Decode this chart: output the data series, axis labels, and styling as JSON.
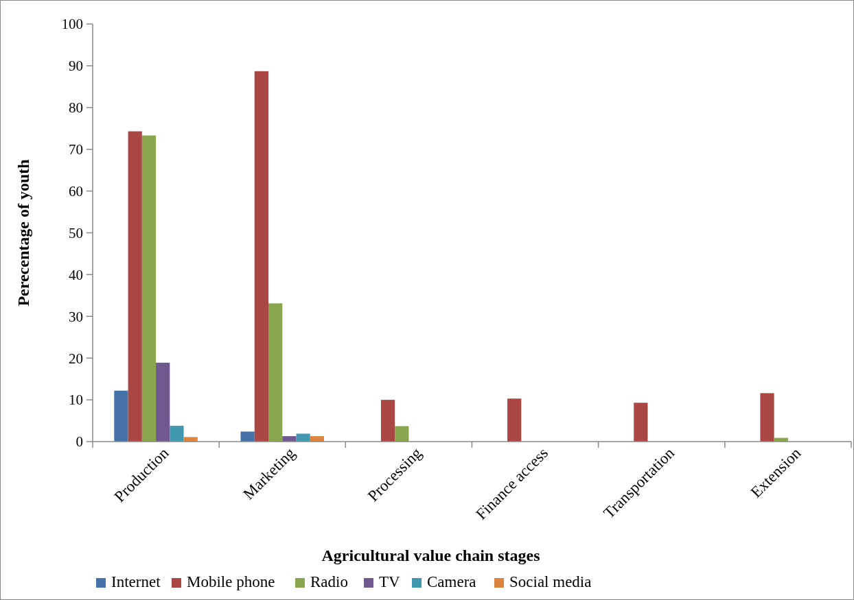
{
  "chart_data": {
    "type": "bar",
    "xlabel": "Agricultural value chain stages",
    "ylabel": "Perecentage of youth",
    "categories": [
      "Production",
      "Marketing",
      "Processing",
      "Finance access",
      "Transportation",
      "Extension"
    ],
    "series": [
      {
        "name": "Internet",
        "color": "#4572a7",
        "values": [
          12.2,
          2.4,
          0,
          0,
          0,
          0
        ]
      },
      {
        "name": "Mobile phone",
        "color": "#aa4643",
        "values": [
          74.3,
          88.7,
          10,
          10.3,
          9.3,
          11.6
        ]
      },
      {
        "name": "Radio",
        "color": "#89a54e",
        "values": [
          73.3,
          33.1,
          3.7,
          0,
          0,
          0.9
        ]
      },
      {
        "name": "TV",
        "color": "#71588f",
        "values": [
          18.9,
          1.3,
          0,
          0,
          0,
          0
        ]
      },
      {
        "name": "Camera",
        "color": "#4198af",
        "values": [
          3.8,
          1.9,
          0,
          0,
          0,
          0
        ]
      },
      {
        "name": "Social media",
        "color": "#db843d",
        "values": [
          1.1,
          1.3,
          0,
          0,
          0,
          0
        ]
      }
    ],
    "ylim": [
      0,
      100
    ],
    "yticks": [
      0,
      10,
      20,
      30,
      40,
      50,
      60,
      70,
      80,
      90,
      100
    ],
    "grid": false,
    "legend": "bottom"
  }
}
